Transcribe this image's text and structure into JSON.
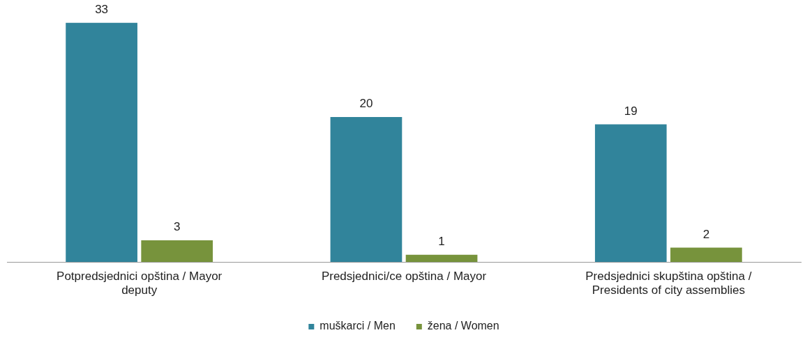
{
  "chart_data": {
    "type": "bar",
    "categories": [
      "Potpredsjednici opština / Mayor deputy",
      "Predsjednici/ce opština / Mayor",
      "Predsjednici skupština opština / Presidents of city assemblies"
    ],
    "series": [
      {
        "name": "muškarci / Men",
        "color": "#31849b",
        "values": [
          33,
          20,
          19
        ]
      },
      {
        "name": "žena / Women",
        "color": "#77933c",
        "values": [
          3,
          1,
          2
        ]
      }
    ],
    "data_labels": true,
    "legend": "bottom",
    "grid": false
  }
}
